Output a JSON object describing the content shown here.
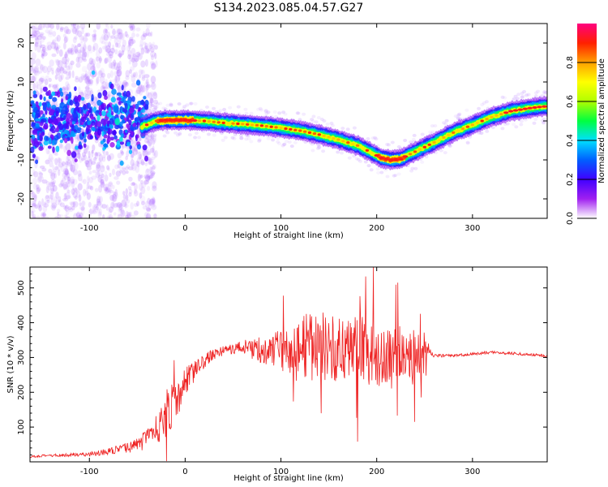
{
  "figure": {
    "title": "S134.2023.085.04.57.G27"
  },
  "chart_data": [
    {
      "type": "heatmap",
      "panel": "spectrogram",
      "xlabel": "Height of straight line (km)",
      "ylabel": "Frequency (Hz)",
      "xlim": [
        -162,
        378
      ],
      "ylim": [
        -25,
        25
      ],
      "x_ticks": [
        -100,
        0,
        100,
        200,
        300
      ],
      "y_ticks": [
        -20,
        -10,
        0,
        10,
        20
      ],
      "ridge": {
        "x": [
          -45,
          -30,
          -20,
          0,
          20,
          40,
          60,
          80,
          100,
          120,
          140,
          160,
          180,
          195,
          205,
          215,
          225,
          235,
          260,
          280,
          300,
          320,
          340,
          360,
          378
        ],
        "freq": [
          -1.5,
          0,
          0.2,
          0.2,
          0,
          -0.5,
          -0.8,
          -1.2,
          -1.8,
          -2.5,
          -3.5,
          -4.8,
          -6.3,
          -8.2,
          -9.5,
          -10,
          -9.8,
          -8.5,
          -5.5,
          -3,
          -1,
          1,
          2.5,
          3.3,
          3.8
        ]
      },
      "noise_region_x": [
        -162,
        -45
      ],
      "colorbar": {
        "label": "Normalized spectral amplitude",
        "ticks": [
          0.0,
          0.2,
          0.4,
          0.6,
          0.8
        ],
        "range": [
          0,
          1
        ],
        "colors": [
          "#ffffff",
          "#a020f0",
          "#4000ff",
          "#0060ff",
          "#00e0ff",
          "#00ff40",
          "#b0ff00",
          "#ffff00",
          "#ffa000",
          "#ff2000",
          "#ff0080"
        ]
      }
    },
    {
      "type": "line",
      "panel": "snr",
      "xlabel": "Height of straight line (km)",
      "ylabel": "SNR (10 * v/v)",
      "xlim": [
        -162,
        378
      ],
      "ylim": [
        0,
        560
      ],
      "x_ticks": [
        -100,
        0,
        100,
        200,
        300
      ],
      "y_ticks": [
        100,
        200,
        300,
        400,
        500
      ],
      "series": [
        {
          "color": "#ee2222",
          "x": [
            -162,
            -140,
            -120,
            -100,
            -80,
            -60,
            -50,
            -40,
            -30,
            -20,
            -15,
            -10,
            -5,
            0,
            10,
            20,
            30,
            40,
            50,
            60,
            70,
            80,
            90,
            100,
            110,
            120,
            130,
            140,
            150,
            160,
            170,
            180,
            190,
            200,
            210,
            220,
            230,
            240,
            250,
            255,
            260,
            280,
            300,
            320,
            340,
            360,
            378
          ],
          "y": [
            15,
            18,
            20,
            22,
            30,
            40,
            50,
            65,
            95,
            120,
            150,
            180,
            200,
            230,
            260,
            290,
            310,
            320,
            325,
            330,
            325,
            322,
            320,
            320,
            325,
            330,
            335,
            330,
            328,
            325,
            330,
            335,
            315,
            300,
            310,
            320,
            315,
            310,
            300,
            320,
            305,
            305,
            310,
            315,
            312,
            308,
            305
          ],
          "noise_amplitude": [
            3,
            4,
            5,
            6,
            10,
            15,
            20,
            30,
            40,
            60,
            70,
            60,
            50,
            40,
            30,
            20,
            15,
            15,
            15,
            20,
            30,
            40,
            50,
            60,
            70,
            80,
            100,
            100,
            100,
            90,
            90,
            100,
            100,
            100,
            90,
            80,
            70,
            70,
            80,
            10,
            5,
            4,
            4,
            4,
            4,
            4,
            4
          ]
        }
      ]
    }
  ]
}
